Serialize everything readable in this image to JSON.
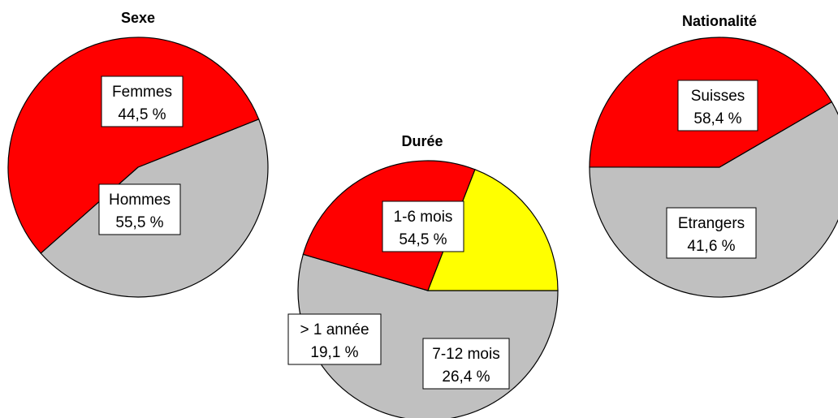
{
  "chart_data": [
    {
      "type": "pie",
      "title": "Sexe",
      "slices": [
        {
          "label": "Femmes",
          "value_text": "44,5 %",
          "value": 44.5,
          "color": "#c0c0c0"
        },
        {
          "label": "Hommes",
          "value_text": "55,5 %",
          "value": 55.5,
          "color": "#ff0000"
        }
      ]
    },
    {
      "type": "pie",
      "title": "Durée",
      "slices": [
        {
          "label": "1-6 mois",
          "value_text": "54,5 %",
          "value": 54.5,
          "color": "#c0c0c0"
        },
        {
          "label": "7-12 mois",
          "value_text": "26,4 %",
          "value": 26.4,
          "color": "#ff0000"
        },
        {
          "label": "> 1 année",
          "value_text": "19,1 %",
          "value": 19.1,
          "color": "#ffff00"
        }
      ]
    },
    {
      "type": "pie",
      "title": "Nationalité",
      "slices": [
        {
          "label": "Suisses",
          "value_text": "58,4 %",
          "value": 58.4,
          "color": "#c0c0c0"
        },
        {
          "label": "Etrangers",
          "value_text": "41,6 %",
          "value": 41.6,
          "color": "#ff0000"
        }
      ]
    }
  ]
}
